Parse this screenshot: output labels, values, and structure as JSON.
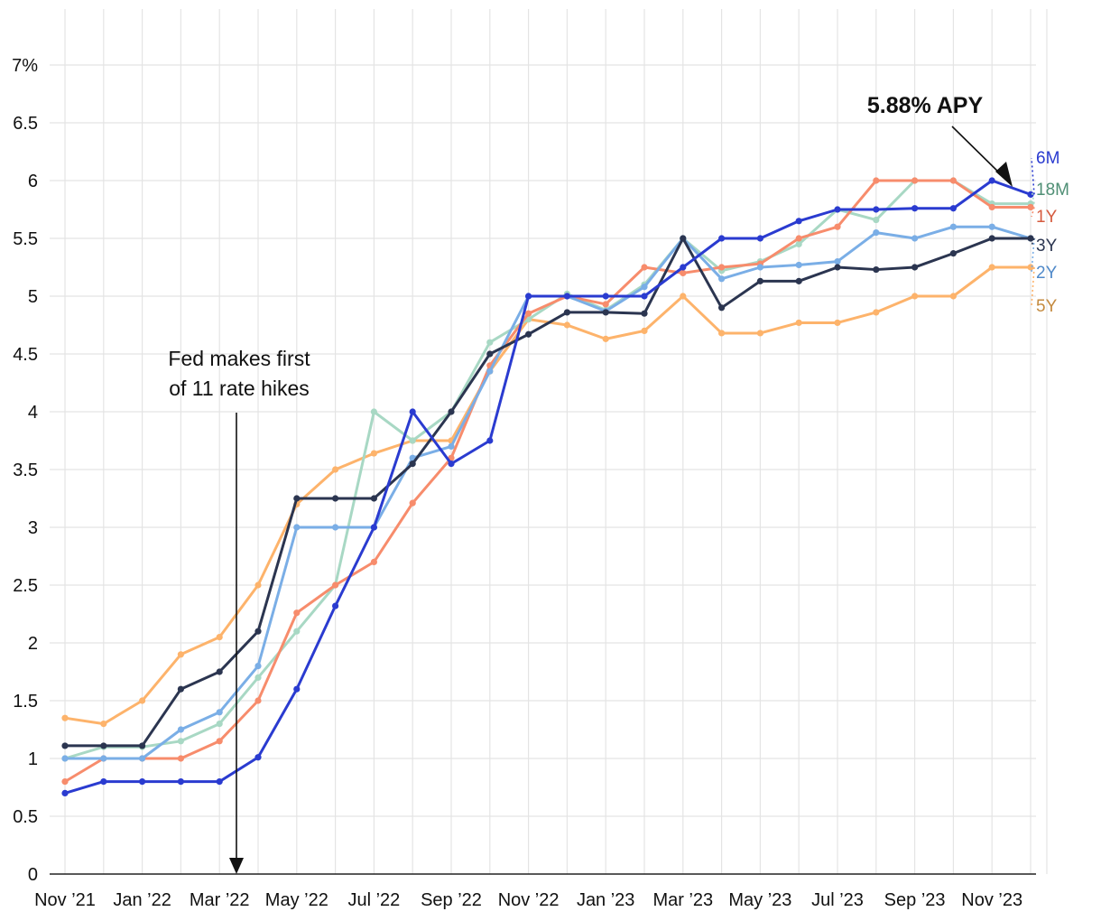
{
  "chart_data": {
    "type": "line",
    "title": "",
    "xlabel": "",
    "ylabel": "",
    "y_unit_label": "7%",
    "ylim": [
      0,
      7
    ],
    "yticks": [
      0,
      0.5,
      1,
      1.5,
      2,
      2.5,
      3,
      3.5,
      4,
      4.5,
      5,
      5.5,
      6,
      6.5,
      7
    ],
    "ytick_labels": [
      "0",
      "0.5",
      "1",
      "1.5",
      "2",
      "2.5",
      "3",
      "3.5",
      "4",
      "4.5",
      "5",
      "5.5",
      "6",
      "6.5",
      "7%"
    ],
    "x": [
      "Nov '21",
      "Dec '21",
      "Jan '22",
      "Feb '22",
      "Mar '22",
      "Apr '22",
      "May '22",
      "Jun '22",
      "Jul '22",
      "Aug '22",
      "Sep '22",
      "Oct '22",
      "Nov '22",
      "Dec '22",
      "Jan '23",
      "Feb '23",
      "Mar '23",
      "Apr '23",
      "May '23",
      "Jun '23",
      "Jul '23",
      "Aug '23",
      "Sep '23",
      "Oct '23",
      "Nov '23",
      "Dec '23"
    ],
    "xtick_labels": [
      "Nov ’21",
      "Jan ’22",
      "Mar ’22",
      "May ’22",
      "Jul ’22",
      "Sep ’22",
      "Nov ’22",
      "Jan ’23",
      "Mar ’23",
      "May ’23",
      "Jul ’23",
      "Sep ’23",
      "Nov ’23"
    ],
    "series": [
      {
        "name": "5Y",
        "color": "#fdb36b",
        "label_color": "#c48a3f",
        "values": [
          1.35,
          1.3,
          1.5,
          1.9,
          2.05,
          2.5,
          3.2,
          3.5,
          3.64,
          3.75,
          3.75,
          4.35,
          4.8,
          4.75,
          4.63,
          4.7,
          5.0,
          4.68,
          4.68,
          4.77,
          4.77,
          4.86,
          5.0,
          5.0,
          5.25,
          5.25
        ]
      },
      {
        "name": "18M",
        "color": "#a8d8c4",
        "label_color": "#4f8f75",
        "values": [
          1.0,
          1.1,
          1.1,
          1.15,
          1.3,
          1.7,
          2.1,
          2.5,
          4.0,
          3.75,
          4.0,
          4.6,
          4.8,
          5.02,
          4.88,
          5.1,
          5.5,
          5.22,
          5.3,
          5.45,
          5.75,
          5.66,
          6.0,
          6.0,
          5.8,
          5.8
        ]
      },
      {
        "name": "1Y",
        "color": "#f78c6c",
        "label_color": "#d55b3f",
        "values": [
          0.8,
          1.0,
          1.0,
          1.0,
          1.15,
          1.5,
          2.26,
          2.5,
          2.7,
          3.21,
          3.6,
          4.4,
          4.85,
          5.0,
          4.93,
          5.25,
          5.2,
          5.25,
          5.28,
          5.5,
          5.6,
          6.0,
          6.0,
          6.0,
          5.77,
          5.77
        ]
      },
      {
        "name": "2Y",
        "color": "#7aaee6",
        "label_color": "#4f89c9",
        "values": [
          1.0,
          1.0,
          1.0,
          1.25,
          1.4,
          1.8,
          3.0,
          3.0,
          3.0,
          3.6,
          3.7,
          4.35,
          5.0,
          5.0,
          4.87,
          5.08,
          5.5,
          5.15,
          5.25,
          5.27,
          5.3,
          5.55,
          5.5,
          5.6,
          5.6,
          5.5
        ]
      },
      {
        "name": "3Y",
        "color": "#2b3550",
        "label_color": "#2b3550",
        "values": [
          1.11,
          1.11,
          1.11,
          1.6,
          1.75,
          2.1,
          3.25,
          3.25,
          3.25,
          3.55,
          4.0,
          4.5,
          4.67,
          4.86,
          4.86,
          4.85,
          5.5,
          4.9,
          5.13,
          5.13,
          5.25,
          5.23,
          5.25,
          5.37,
          5.5,
          5.5
        ]
      },
      {
        "name": "6M",
        "color": "#2a3bd0",
        "label_color": "#2a3bd0",
        "values": [
          0.7,
          0.8,
          0.8,
          0.8,
          0.8,
          1.01,
          1.6,
          2.32,
          3.0,
          4.0,
          3.55,
          3.75,
          5.0,
          5.0,
          5.0,
          5.0,
          5.25,
          5.5,
          5.5,
          5.65,
          5.75,
          5.75,
          5.76,
          5.76,
          6.0,
          5.88
        ]
      }
    ],
    "annotations": [
      {
        "text_lines": [
          "Fed makes first",
          "of 11 rate hikes"
        ],
        "points_to": "Mar '22",
        "arrow": "down"
      },
      {
        "text": "5.88% APY",
        "points_to": "6M Dec '23"
      }
    ]
  }
}
